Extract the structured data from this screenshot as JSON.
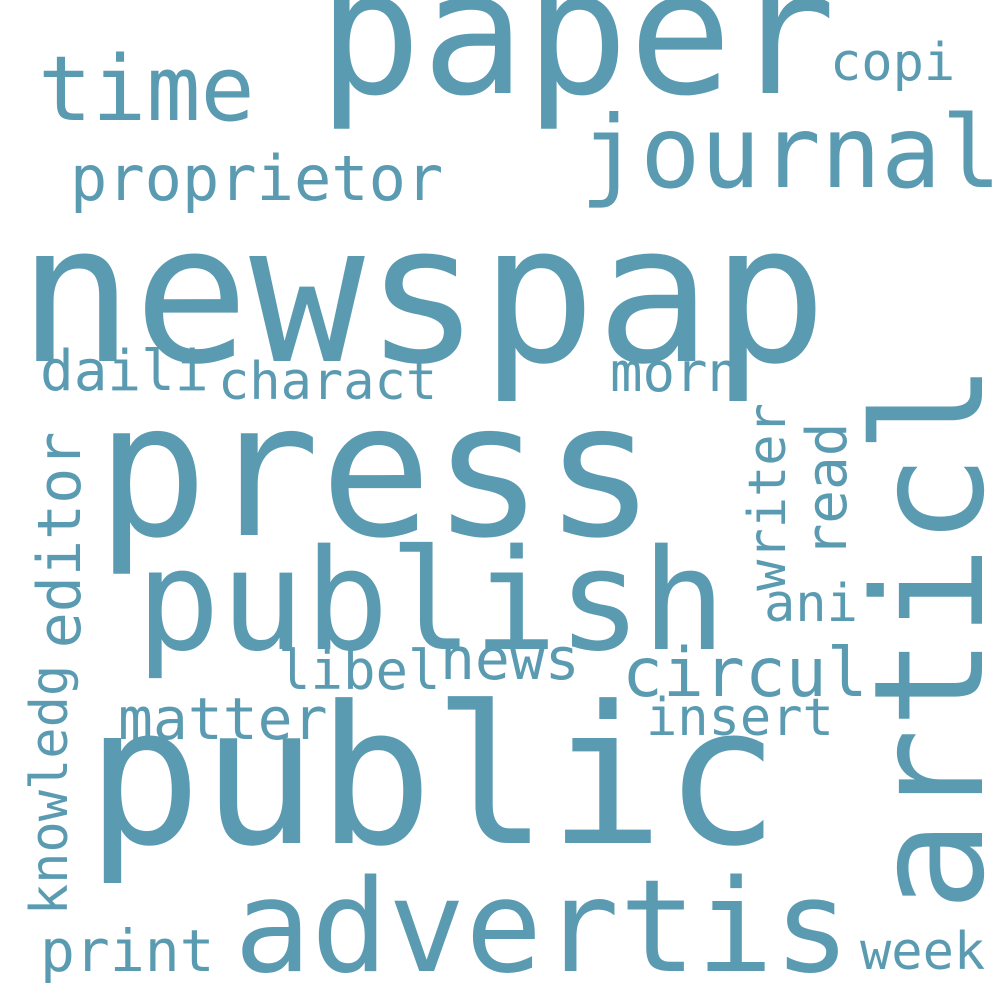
{
  "color": "#5b9bb2",
  "background": "#ffffff",
  "words": {
    "newspap": "newspap",
    "public": "public",
    "press": "press",
    "paper": "paper",
    "publish": "publish",
    "advertis": "advertis",
    "articl": "articl",
    "journal": "journal",
    "time": "time",
    "proprietor": "proprietor",
    "copi": "copi",
    "daili": "daili",
    "charact": "charact",
    "morn": "morn",
    "editor": "editor",
    "writer": "writer",
    "read": "read",
    "ani": "ani",
    "libel": "libel",
    "news": "news",
    "circul": "circul",
    "matter": "matter",
    "insert": "insert",
    "knowledg": "knowledg",
    "print": "print",
    "week": "week"
  }
}
